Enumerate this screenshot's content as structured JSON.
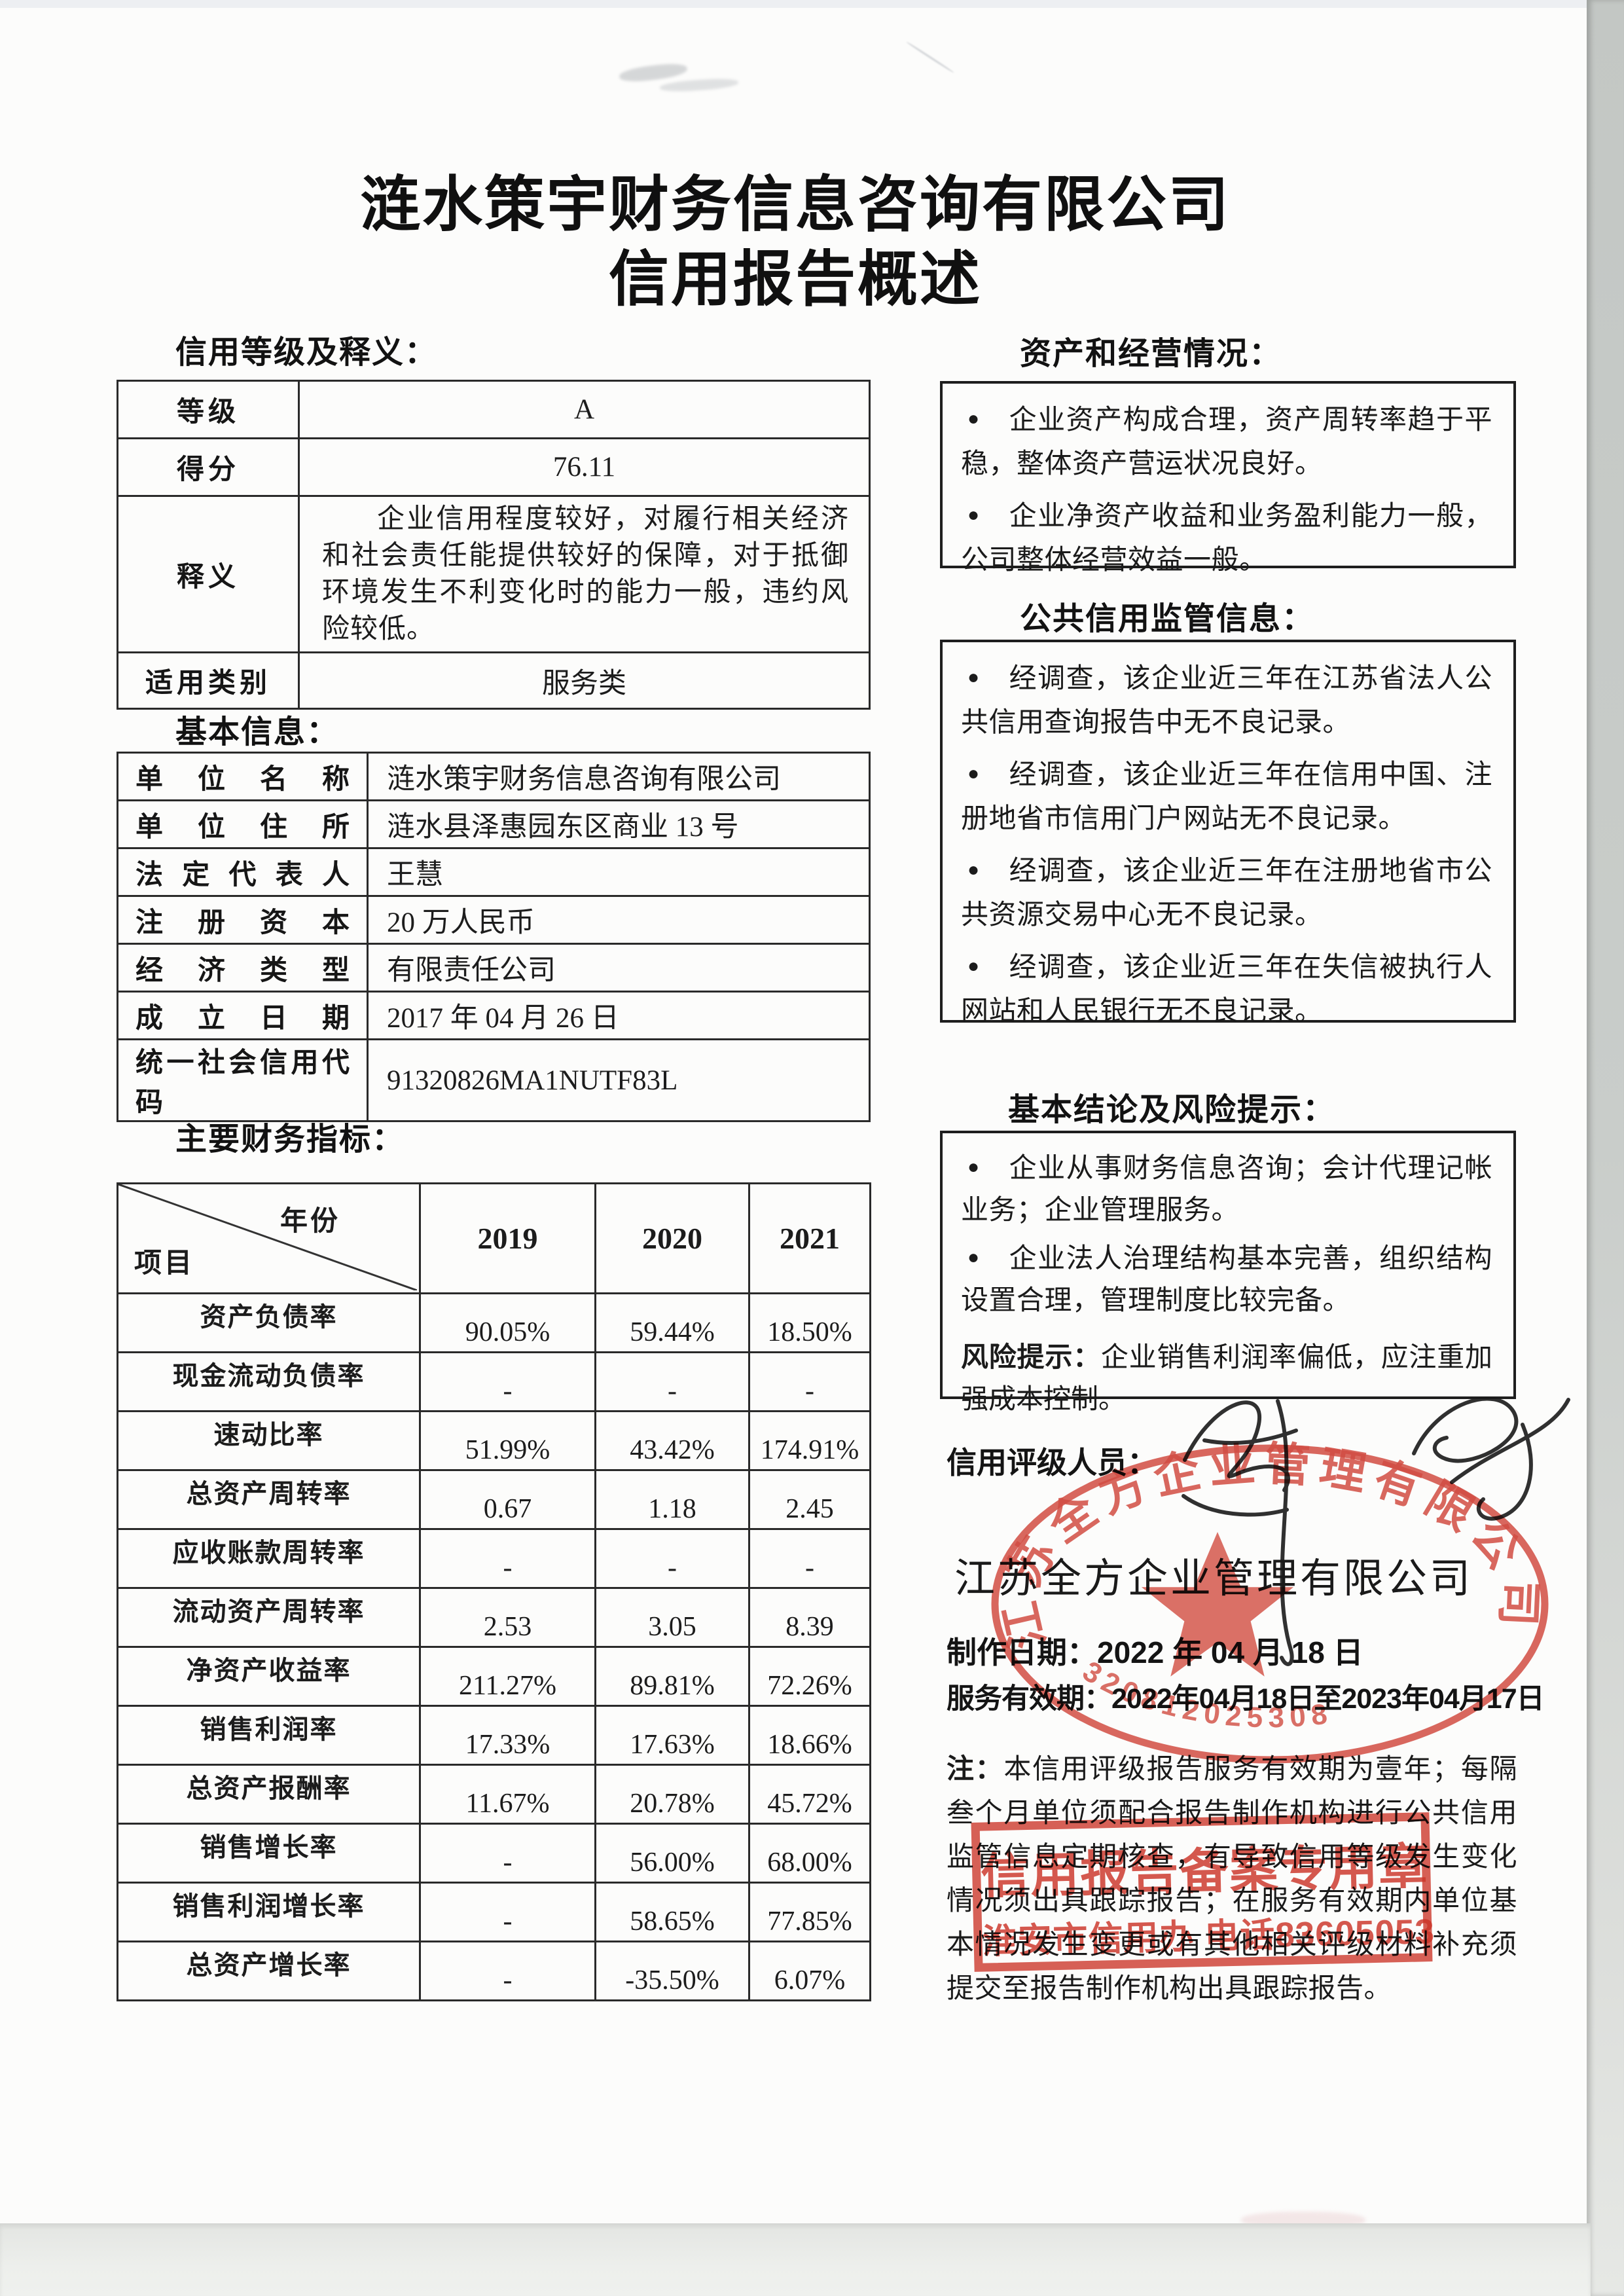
{
  "title": {
    "line1": "涟水策宇财务信息咨询有限公司",
    "line2": "信用报告概述"
  },
  "rating": {
    "heading": "信用等级及释义：",
    "rows": [
      {
        "label": "等级",
        "value": "A"
      },
      {
        "label": "得分",
        "value": "76.11"
      },
      {
        "label": "释义",
        "value": "企业信用程度较好，对履行相关经济和社会责任能提供较好的保障，对于抵御环境发生不利变化时的能力一般，违约风险较低。"
      },
      {
        "label": "适用类别",
        "value": "服务类"
      }
    ]
  },
  "basic_info": {
    "heading": "基本信息：",
    "rows": [
      {
        "label": "单位名称",
        "value": "涟水策宇财务信息咨询有限公司"
      },
      {
        "label": "单位住所",
        "value": "涟水县泽惠园东区商业 13 号"
      },
      {
        "label": "法定代表人",
        "value": "王慧"
      },
      {
        "label": "注册资本",
        "value": "20 万人民币"
      },
      {
        "label": "经济类型",
        "value": "有限责任公司"
      },
      {
        "label": "成立日期",
        "value": "2017 年 04 月 26 日"
      },
      {
        "label": "统一社会信用代码",
        "value": "91320826MA1NUTF83L"
      }
    ]
  },
  "financial": {
    "heading": "主要财务指标：",
    "corner_top": "年份",
    "corner_bottom": "项目",
    "years": [
      "2019",
      "2020",
      "2021"
    ],
    "rows": [
      {
        "label": "资产负债率",
        "values": [
          "90.05%",
          "59.44%",
          "18.50%"
        ]
      },
      {
        "label": "现金流动负债率",
        "values": [
          "-",
          "-",
          "-"
        ]
      },
      {
        "label": "速动比率",
        "values": [
          "51.99%",
          "43.42%",
          "174.91%"
        ]
      },
      {
        "label": "总资产周转率",
        "values": [
          "0.67",
          "1.18",
          "2.45"
        ]
      },
      {
        "label": "应收账款周转率",
        "values": [
          "-",
          "-",
          "-"
        ]
      },
      {
        "label": "流动资产周转率",
        "values": [
          "2.53",
          "3.05",
          "8.39"
        ]
      },
      {
        "label": "净资产收益率",
        "values": [
          "211.27%",
          "89.81%",
          "72.26%"
        ]
      },
      {
        "label": "销售利润率",
        "values": [
          "17.33%",
          "17.63%",
          "18.66%"
        ]
      },
      {
        "label": "总资产报酬率",
        "values": [
          "11.67%",
          "20.78%",
          "45.72%"
        ]
      },
      {
        "label": "销售增长率",
        "values": [
          "-",
          "56.00%",
          "68.00%"
        ]
      },
      {
        "label": "销售利润增长率",
        "values": [
          "-",
          "58.65%",
          "77.85%"
        ]
      },
      {
        "label": "总资产增长率",
        "values": [
          "-",
          "-35.50%",
          "6.07%"
        ]
      }
    ]
  },
  "assets_ops": {
    "heading": "资产和经营情况：",
    "bullets": [
      "企业资产构成合理，资产周转率趋于平稳，整体资产营运状况良好。",
      "企业净资产收益和业务盈利能力一般，公司整体经营效益一般。"
    ]
  },
  "public_credit": {
    "heading": "公共信用监管信息：",
    "bullets": [
      "经调查，该企业近三年在江苏省法人公共信用查询报告中无不良记录。",
      "经调查，该企业近三年在信用中国、注册地省市信用门户网站无不良记录。",
      "经调查，该企业近三年在注册地省市公共资源交易中心无不良记录。",
      "经调查，该企业近三年在失信被执行人网站和人民银行无不良记录。"
    ]
  },
  "conclusion": {
    "heading": "基本结论及风险提示：",
    "bullets": [
      "企业从事财务信息咨询；会计代理记帐业务；企业管理服务。",
      "企业法人治理结构基本完善，组织结构设置合理，管理制度比较完备。"
    ],
    "risk_label": "风险提示：",
    "risk_text": "企业销售利润率偏低，应注重加强成本控制。"
  },
  "signoff": {
    "rater_label": "信用评级人员：",
    "company": "江苏全方企业管理有限公司",
    "made_date_label": "制作日期：",
    "made_date": "2022 年 04 月 18 日",
    "validity_label": "服务有效期：",
    "validity": "2022年04月18日至2023年04月17日",
    "note_label": "注：",
    "note_text": "本信用评级报告服务有效期为壹年；每隔叁个月单位须配合报告制作机构进行公共信用监管信息定期核查，有导致信用等级发生变化情况须出具跟踪报告；在服务有效期内单位基本情况发生变更或有其他相关评级材料补充须提交至报告制作机构出具跟踪报告。"
  },
  "stamps": {
    "round_seal_ring_text": "江苏全方企业管理有限公司",
    "round_seal_code": "320812025308",
    "rect_line1": "信用报告备案专用章",
    "rect_line2": "淮安市信用办 电话83605053",
    "seal_color": "#ce3428"
  }
}
